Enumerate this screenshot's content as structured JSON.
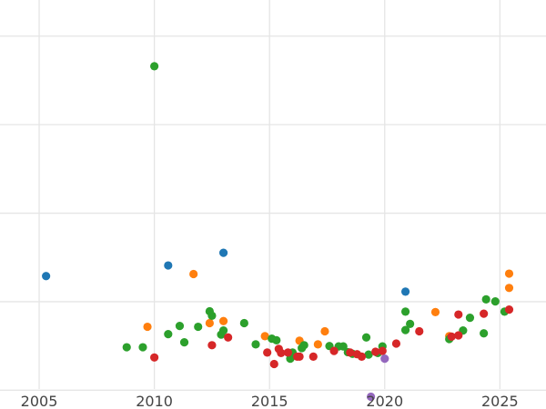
{
  "chart_data": {
    "type": "scatter",
    "title": "",
    "xlabel": "",
    "ylabel": "",
    "xlim": [
      2003.3,
      2027.0
    ],
    "ylim": [
      0.0,
      1.0
    ],
    "grid": true,
    "x_ticks": [
      2005,
      2010,
      2015,
      2020,
      2025
    ],
    "x_tick_labels": [
      "2005",
      "2010",
      "2015",
      "2020",
      "2025"
    ],
    "y_gridlines": [
      0.046,
      0.2624,
      0.4788,
      0.6952,
      0.9116
    ],
    "y_tick_labels": [],
    "colors": {
      "blue": "#1f77b4",
      "orange": "#ff7f0e",
      "green": "#2ca02c",
      "red": "#d62728",
      "purple": "#9467bd",
      "grid": "#e5e5e5"
    },
    "series": [
      {
        "color": "blue",
        "points": [
          {
            "x": 2005.3,
            "y": 0.325
          },
          {
            "x": 2010.6,
            "y": 0.351
          },
          {
            "x": 2013.0,
            "y": 0.382
          },
          {
            "x": 2020.9,
            "y": 0.287
          }
        ]
      },
      {
        "color": "orange",
        "points": [
          {
            "x": 2009.7,
            "y": 0.201
          },
          {
            "x": 2011.7,
            "y": 0.33
          },
          {
            "x": 2012.4,
            "y": 0.21
          },
          {
            "x": 2013.0,
            "y": 0.215
          },
          {
            "x": 2014.8,
            "y": 0.178
          },
          {
            "x": 2016.3,
            "y": 0.167
          },
          {
            "x": 2017.1,
            "y": 0.158
          },
          {
            "x": 2017.4,
            "y": 0.19
          },
          {
            "x": 2022.2,
            "y": 0.237
          },
          {
            "x": 2022.8,
            "y": 0.178
          },
          {
            "x": 2025.4,
            "y": 0.331
          },
          {
            "x": 2025.4,
            "y": 0.296
          }
        ]
      },
      {
        "color": "green",
        "points": [
          {
            "x": 2008.8,
            "y": 0.151
          },
          {
            "x": 2009.5,
            "y": 0.151
          },
          {
            "x": 2010.0,
            "y": 0.838
          },
          {
            "x": 2010.6,
            "y": 0.183
          },
          {
            "x": 2011.1,
            "y": 0.203
          },
          {
            "x": 2011.3,
            "y": 0.163
          },
          {
            "x": 2011.9,
            "y": 0.201
          },
          {
            "x": 2012.4,
            "y": 0.239
          },
          {
            "x": 2012.5,
            "y": 0.228
          },
          {
            "x": 2012.9,
            "y": 0.182
          },
          {
            "x": 2013.0,
            "y": 0.192
          },
          {
            "x": 2013.9,
            "y": 0.21
          },
          {
            "x": 2014.4,
            "y": 0.158
          },
          {
            "x": 2015.1,
            "y": 0.172
          },
          {
            "x": 2015.3,
            "y": 0.168
          },
          {
            "x": 2015.9,
            "y": 0.123
          },
          {
            "x": 2016.0,
            "y": 0.138
          },
          {
            "x": 2016.4,
            "y": 0.149
          },
          {
            "x": 2016.5,
            "y": 0.156
          },
          {
            "x": 2017.6,
            "y": 0.154
          },
          {
            "x": 2018.0,
            "y": 0.153
          },
          {
            "x": 2018.2,
            "y": 0.153
          },
          {
            "x": 2018.4,
            "y": 0.139
          },
          {
            "x": 2018.6,
            "y": 0.135
          },
          {
            "x": 2019.2,
            "y": 0.175
          },
          {
            "x": 2019.3,
            "y": 0.133
          },
          {
            "x": 2019.7,
            "y": 0.137
          },
          {
            "x": 2019.9,
            "y": 0.153
          },
          {
            "x": 2020.9,
            "y": 0.238
          },
          {
            "x": 2020.9,
            "y": 0.193
          },
          {
            "x": 2021.1,
            "y": 0.208
          },
          {
            "x": 2022.8,
            "y": 0.171
          },
          {
            "x": 2023.4,
            "y": 0.192
          },
          {
            "x": 2023.7,
            "y": 0.223
          },
          {
            "x": 2024.3,
            "y": 0.185
          },
          {
            "x": 2024.4,
            "y": 0.268
          },
          {
            "x": 2024.8,
            "y": 0.263
          },
          {
            "x": 2025.2,
            "y": 0.238
          }
        ]
      },
      {
        "color": "red",
        "points": [
          {
            "x": 2010.0,
            "y": 0.126
          },
          {
            "x": 2012.5,
            "y": 0.156
          },
          {
            "x": 2013.2,
            "y": 0.175
          },
          {
            "x": 2014.9,
            "y": 0.138
          },
          {
            "x": 2015.2,
            "y": 0.11
          },
          {
            "x": 2015.4,
            "y": 0.147
          },
          {
            "x": 2015.5,
            "y": 0.137
          },
          {
            "x": 2015.8,
            "y": 0.138
          },
          {
            "x": 2016.2,
            "y": 0.128
          },
          {
            "x": 2016.3,
            "y": 0.128
          },
          {
            "x": 2016.9,
            "y": 0.128
          },
          {
            "x": 2017.8,
            "y": 0.142
          },
          {
            "x": 2018.5,
            "y": 0.138
          },
          {
            "x": 2018.8,
            "y": 0.134
          },
          {
            "x": 2019.0,
            "y": 0.128
          },
          {
            "x": 2019.6,
            "y": 0.14
          },
          {
            "x": 2019.9,
            "y": 0.142
          },
          {
            "x": 2020.5,
            "y": 0.16
          },
          {
            "x": 2021.5,
            "y": 0.19
          },
          {
            "x": 2022.9,
            "y": 0.177
          },
          {
            "x": 2023.2,
            "y": 0.231
          },
          {
            "x": 2023.2,
            "y": 0.18
          },
          {
            "x": 2024.3,
            "y": 0.233
          },
          {
            "x": 2025.4,
            "y": 0.243
          }
        ]
      },
      {
        "color": "purple",
        "points": [
          {
            "x": 2020.0,
            "y": 0.123
          },
          {
            "x": 2019.4,
            "y": 0.03
          }
        ]
      }
    ]
  }
}
